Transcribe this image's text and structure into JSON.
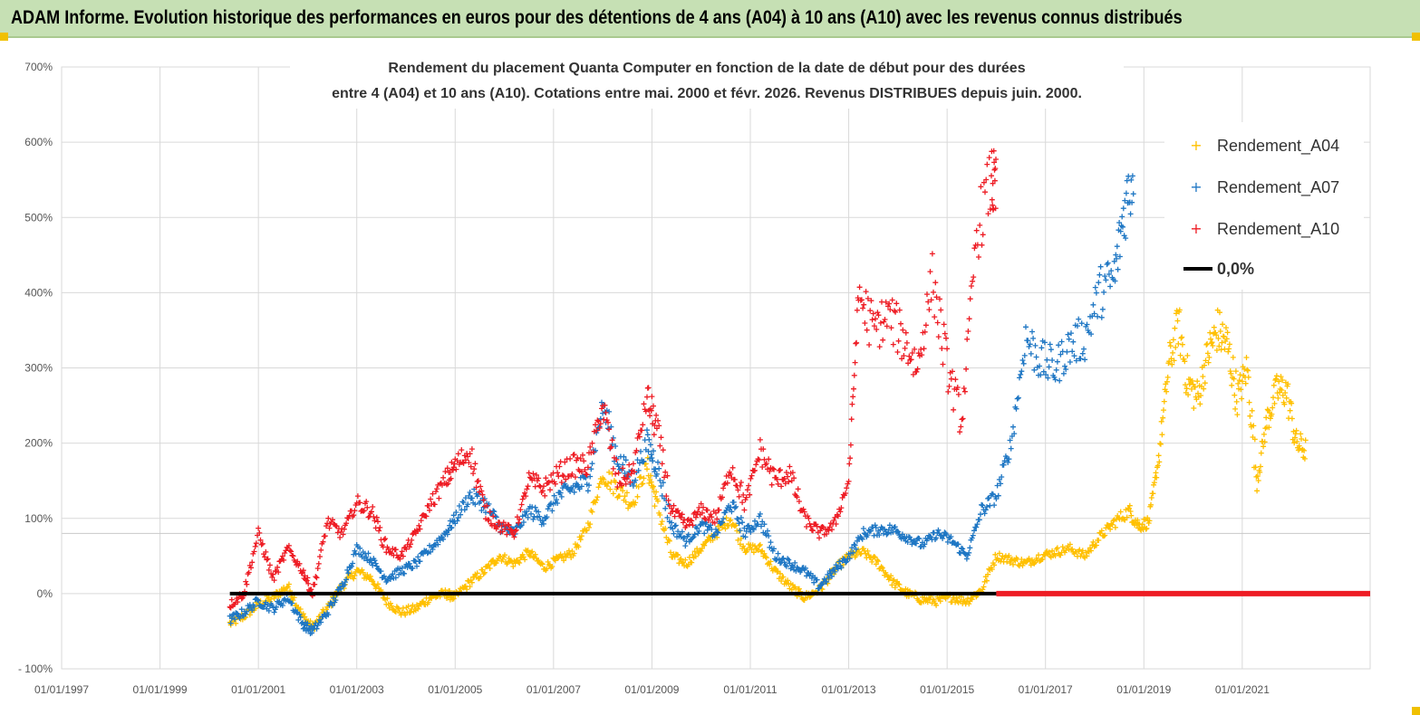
{
  "banner": {
    "title": "ADAM Informe. Evolution historique des performances en euros pour des détentions de 4 ans (A04) à 10 ans (A10) avec les revenus connus distribués"
  },
  "colors": {
    "banner_bg": "#c6e0b4",
    "a04": "#ffc000",
    "a07": "#1f77c4",
    "a10": "#ee1c24",
    "zero": "#000000",
    "grid": "#d9d9d9",
    "corner": "#f0c000"
  },
  "chart_data": {
    "type": "scatter",
    "title_line1": "Rendement du placement Quanta Computer  en fonction de la date de début pour des durées",
    "title_line2": "entre 4 (A04) et 10 ans (A10).  Cotations entre mai. 2000 et févr. 2026. Revenus DISTRIBUES depuis juin. 2000.",
    "y_ticks": [
      "- 100%",
      "0%",
      "100%",
      "200%",
      "300%",
      "400%",
      "500%",
      "600%",
      "700%"
    ],
    "x_ticks": [
      "01/01/1997",
      "01/01/1999",
      "01/01/2001",
      "01/01/2003",
      "01/01/2005",
      "01/01/2007",
      "01/01/2009",
      "01/01/2011",
      "01/01/2013",
      "01/01/2015",
      "01/01/2017",
      "01/01/2019",
      "01/01/2021"
    ],
    "ylim": [
      -100,
      700
    ],
    "xlim_years": [
      1997,
      2023.6
    ],
    "grid": true,
    "legend_position": "top-right",
    "series": [
      {
        "name": "Rendement_A04",
        "color": "#ffc000",
        "points": [
          [
            2000.42,
            -40
          ],
          [
            2000.7,
            -30
          ],
          [
            2001.0,
            -15
          ],
          [
            2001.3,
            -5
          ],
          [
            2001.6,
            10
          ],
          [
            2001.9,
            -30
          ],
          [
            2002.1,
            -45
          ],
          [
            2002.4,
            -20
          ],
          [
            2002.7,
            10
          ],
          [
            2003.0,
            30
          ],
          [
            2003.3,
            20
          ],
          [
            2003.6,
            -10
          ],
          [
            2003.9,
            -25
          ],
          [
            2004.2,
            -20
          ],
          [
            2004.5,
            -5
          ],
          [
            2004.8,
            0
          ],
          [
            2005.0,
            -5
          ],
          [
            2005.3,
            15
          ],
          [
            2005.6,
            30
          ],
          [
            2005.9,
            50
          ],
          [
            2006.2,
            40
          ],
          [
            2006.5,
            55
          ],
          [
            2006.8,
            35
          ],
          [
            2007.1,
            45
          ],
          [
            2007.4,
            55
          ],
          [
            2007.7,
            90
          ],
          [
            2008.0,
            160
          ],
          [
            2008.3,
            140
          ],
          [
            2008.6,
            120
          ],
          [
            2008.9,
            170
          ],
          [
            2009.1,
            120
          ],
          [
            2009.4,
            50
          ],
          [
            2009.7,
            40
          ],
          [
            2010.0,
            60
          ],
          [
            2010.3,
            80
          ],
          [
            2010.6,
            100
          ],
          [
            2010.9,
            60
          ],
          [
            2011.2,
            60
          ],
          [
            2011.5,
            30
          ],
          [
            2011.8,
            10
          ],
          [
            2012.1,
            -5
          ],
          [
            2012.4,
            5
          ],
          [
            2012.7,
            30
          ],
          [
            2013.0,
            50
          ],
          [
            2013.3,
            55
          ],
          [
            2013.6,
            40
          ],
          [
            2013.9,
            15
          ],
          [
            2014.2,
            0
          ],
          [
            2014.5,
            -8
          ],
          [
            2014.8,
            -10
          ],
          [
            2015.1,
            -5
          ],
          [
            2015.4,
            -10
          ],
          [
            2015.7,
            5
          ],
          [
            2016.0,
            50
          ],
          [
            2016.3,
            45
          ],
          [
            2016.6,
            40
          ],
          [
            2016.9,
            50
          ],
          [
            2017.2,
            55
          ],
          [
            2017.5,
            60
          ],
          [
            2017.8,
            50
          ],
          [
            2018.1,
            75
          ],
          [
            2018.4,
            95
          ],
          [
            2018.7,
            110
          ],
          [
            2018.9,
            90
          ],
          [
            2019.1,
            95
          ],
          [
            2019.3,
            180
          ],
          [
            2019.5,
            300
          ],
          [
            2019.7,
            360
          ],
          [
            2019.9,
            280
          ],
          [
            2020.1,
            260
          ],
          [
            2020.3,
            320
          ],
          [
            2020.5,
            350
          ],
          [
            2020.7,
            330
          ],
          [
            2020.9,
            260
          ],
          [
            2021.1,
            300
          ],
          [
            2021.3,
            150
          ],
          [
            2021.5,
            230
          ],
          [
            2021.7,
            270
          ],
          [
            2021.9,
            270
          ],
          [
            2022.1,
            200
          ],
          [
            2022.3,
            190
          ]
        ]
      },
      {
        "name": "Rendement_A07",
        "color": "#1f77c4",
        "points": [
          [
            2000.42,
            -35
          ],
          [
            2000.7,
            -25
          ],
          [
            2001.0,
            -10
          ],
          [
            2001.3,
            -20
          ],
          [
            2001.6,
            -5
          ],
          [
            2001.9,
            -40
          ],
          [
            2002.1,
            -50
          ],
          [
            2002.4,
            -25
          ],
          [
            2002.7,
            10
          ],
          [
            2003.0,
            60
          ],
          [
            2003.3,
            45
          ],
          [
            2003.6,
            20
          ],
          [
            2003.9,
            30
          ],
          [
            2004.2,
            40
          ],
          [
            2004.5,
            60
          ],
          [
            2004.8,
            80
          ],
          [
            2005.0,
            100
          ],
          [
            2005.3,
            130
          ],
          [
            2005.6,
            120
          ],
          [
            2005.9,
            90
          ],
          [
            2006.2,
            80
          ],
          [
            2006.5,
            110
          ],
          [
            2006.8,
            100
          ],
          [
            2007.1,
            130
          ],
          [
            2007.4,
            140
          ],
          [
            2007.7,
            150
          ],
          [
            2008.0,
            250
          ],
          [
            2008.3,
            180
          ],
          [
            2008.6,
            150
          ],
          [
            2008.9,
            200
          ],
          [
            2009.1,
            170
          ],
          [
            2009.4,
            90
          ],
          [
            2009.7,
            70
          ],
          [
            2010.0,
            90
          ],
          [
            2010.3,
            80
          ],
          [
            2010.6,
            120
          ],
          [
            2010.9,
            80
          ],
          [
            2011.2,
            100
          ],
          [
            2011.5,
            50
          ],
          [
            2011.8,
            40
          ],
          [
            2012.1,
            30
          ],
          [
            2012.4,
            10
          ],
          [
            2012.7,
            30
          ],
          [
            2013.0,
            50
          ],
          [
            2013.3,
            80
          ],
          [
            2013.6,
            85
          ],
          [
            2013.9,
            85
          ],
          [
            2014.2,
            75
          ],
          [
            2014.5,
            65
          ],
          [
            2014.8,
            80
          ],
          [
            2015.1,
            70
          ],
          [
            2015.4,
            50
          ],
          [
            2015.7,
            110
          ],
          [
            2016.0,
            130
          ],
          [
            2016.3,
            200
          ],
          [
            2016.6,
            340
          ],
          [
            2016.9,
            310
          ],
          [
            2017.2,
            300
          ],
          [
            2017.5,
            330
          ],
          [
            2017.8,
            340
          ],
          [
            2018.1,
            400
          ],
          [
            2018.4,
            420
          ],
          [
            2018.6,
            510
          ],
          [
            2018.8,
            560
          ]
        ]
      },
      {
        "name": "Rendement_A10",
        "color": "#ee1c24",
        "points": [
          [
            2000.42,
            -15
          ],
          [
            2000.7,
            0
          ],
          [
            2001.0,
            80
          ],
          [
            2001.3,
            20
          ],
          [
            2001.6,
            60
          ],
          [
            2001.9,
            30
          ],
          [
            2002.1,
            0
          ],
          [
            2002.4,
            95
          ],
          [
            2002.7,
            80
          ],
          [
            2003.0,
            120
          ],
          [
            2003.3,
            110
          ],
          [
            2003.6,
            60
          ],
          [
            2003.9,
            50
          ],
          [
            2004.2,
            80
          ],
          [
            2004.5,
            120
          ],
          [
            2004.8,
            150
          ],
          [
            2005.0,
            170
          ],
          [
            2005.3,
            190
          ],
          [
            2005.6,
            110
          ],
          [
            2005.9,
            90
          ],
          [
            2006.2,
            80
          ],
          [
            2006.5,
            150
          ],
          [
            2006.8,
            140
          ],
          [
            2007.1,
            160
          ],
          [
            2007.4,
            170
          ],
          [
            2007.7,
            170
          ],
          [
            2008.0,
            250
          ],
          [
            2008.3,
            150
          ],
          [
            2008.6,
            160
          ],
          [
            2008.9,
            260
          ],
          [
            2009.1,
            220
          ],
          [
            2009.4,
            110
          ],
          [
            2009.7,
            90
          ],
          [
            2010.0,
            110
          ],
          [
            2010.3,
            100
          ],
          [
            2010.6,
            170
          ],
          [
            2010.9,
            120
          ],
          [
            2011.2,
            190
          ],
          [
            2011.5,
            150
          ],
          [
            2011.8,
            160
          ],
          [
            2012.1,
            100
          ],
          [
            2012.4,
            80
          ],
          [
            2012.7,
            90
          ],
          [
            2013.0,
            150
          ],
          [
            2013.2,
            400
          ],
          [
            2013.5,
            350
          ],
          [
            2013.8,
            370
          ],
          [
            2014.1,
            340
          ],
          [
            2014.4,
            300
          ],
          [
            2014.7,
            420
          ],
          [
            2015.0,
            300
          ],
          [
            2015.3,
            230
          ],
          [
            2015.6,
            480
          ],
          [
            2015.9,
            550
          ],
          [
            2016.0,
            530
          ]
        ]
      },
      {
        "name": "0,0%",
        "color": "#000000",
        "points": [
          [
            2000.42,
            0
          ],
          [
            2016.0,
            0
          ]
        ]
      }
    ]
  }
}
